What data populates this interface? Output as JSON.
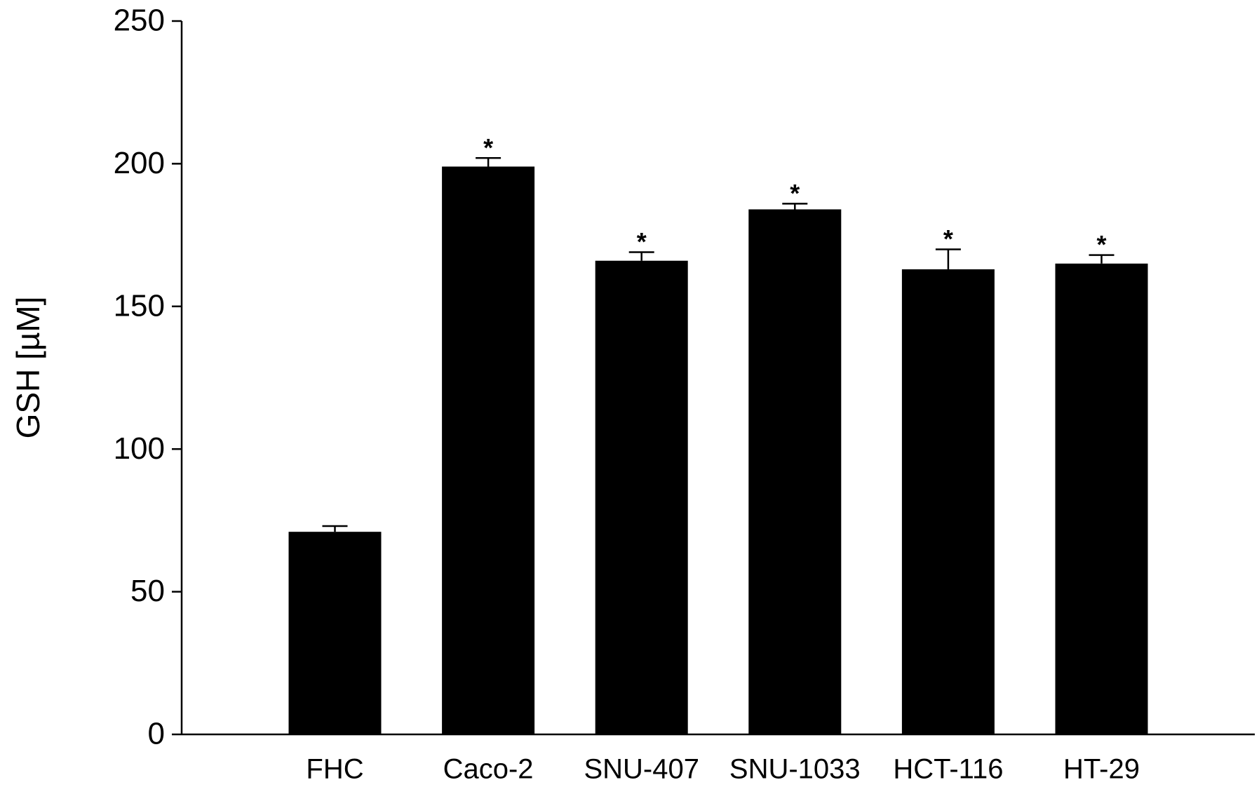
{
  "chart_data": {
    "type": "bar",
    "y_label": "GSH [µM]",
    "categories": [
      "FHC",
      "Caco-2",
      "SNU-407",
      "SNU-1033",
      "HCT-116",
      "HT-29"
    ],
    "values": [
      71,
      199,
      166,
      184,
      163,
      165
    ],
    "errors": [
      2,
      3,
      3,
      2,
      7,
      3
    ],
    "annotations": [
      null,
      "*",
      "*",
      "*",
      "*",
      "*"
    ],
    "color": "#000000",
    "ylim": [
      0,
      250
    ],
    "yticks": [
      0,
      50,
      100,
      150,
      200,
      250
    ],
    "grid": false
  }
}
